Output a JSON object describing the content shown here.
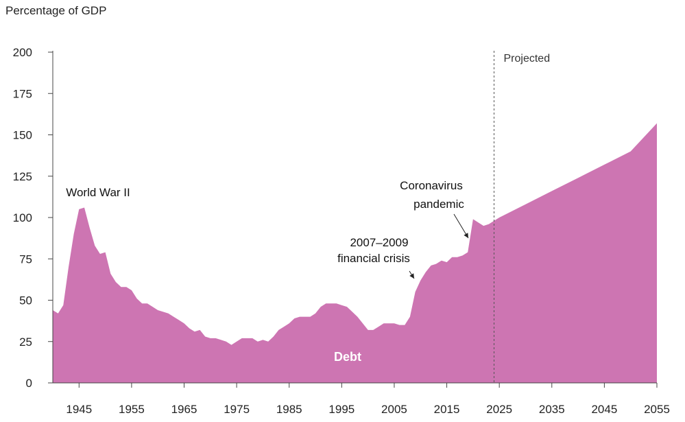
{
  "chart_data": {
    "type": "area",
    "ylabel": "Percentage of GDP",
    "ylim": [
      0,
      200
    ],
    "xlim": [
      1940,
      2055
    ],
    "yticks": [
      0,
      25,
      50,
      75,
      100,
      125,
      150,
      175,
      200
    ],
    "xticks": [
      1945,
      1955,
      1965,
      1975,
      1985,
      1995,
      2005,
      2015,
      2025,
      2035,
      2045,
      2055
    ],
    "grid": false,
    "fill_color": "#cd75b2",
    "projection_start": 2024,
    "projection_label": "Projected",
    "series": [
      {
        "name": "Debt",
        "x": [
          1940,
          1941,
          1942,
          1943,
          1944,
          1945,
          1946,
          1947,
          1948,
          1949,
          1950,
          1951,
          1952,
          1953,
          1954,
          1955,
          1956,
          1957,
          1958,
          1959,
          1960,
          1961,
          1962,
          1963,
          1964,
          1965,
          1966,
          1967,
          1968,
          1969,
          1970,
          1971,
          1972,
          1973,
          1974,
          1975,
          1976,
          1977,
          1978,
          1979,
          1980,
          1981,
          1982,
          1983,
          1984,
          1985,
          1986,
          1987,
          1988,
          1989,
          1990,
          1991,
          1992,
          1993,
          1994,
          1995,
          1996,
          1997,
          1998,
          1999,
          2000,
          2001,
          2002,
          2003,
          2004,
          2005,
          2006,
          2007,
          2008,
          2009,
          2010,
          2011,
          2012,
          2013,
          2014,
          2015,
          2016,
          2017,
          2018,
          2019,
          2020,
          2021,
          2022,
          2023,
          2024,
          2025,
          2030,
          2035,
          2040,
          2045,
          2050,
          2055
        ],
        "values": [
          44,
          42,
          47,
          70,
          90,
          105,
          106,
          94,
          83,
          78,
          79,
          66,
          61,
          58,
          58,
          56,
          51,
          48,
          48,
          46,
          44,
          43,
          42,
          40,
          38,
          36,
          33,
          31,
          32,
          28,
          27,
          27,
          26,
          25,
          23,
          25,
          27,
          27,
          27,
          25,
          26,
          25,
          28,
          32,
          34,
          36,
          39,
          40,
          40,
          40,
          42,
          46,
          48,
          48,
          48,
          47,
          46,
          43,
          40,
          36,
          32,
          32,
          34,
          36,
          36,
          36,
          35,
          35,
          40,
          55,
          62,
          67,
          71,
          72,
          74,
          73,
          76,
          76,
          77,
          79,
          99,
          97,
          95,
          96,
          98,
          100,
          108,
          116,
          124,
          132,
          140,
          157
        ]
      }
    ],
    "annotations": [
      {
        "text": "World War II",
        "x": 1945,
        "y": 106
      },
      {
        "text": "Coronavirus",
        "x": 2020,
        "y": 99
      },
      {
        "text": "pandemic",
        "x": 2020,
        "y": 99
      },
      {
        "text": "2007–2009",
        "x": 2009,
        "y": 55
      },
      {
        "text": "financial crisis",
        "x": 2009,
        "y": 55
      },
      {
        "text": "Debt",
        "x": 1998,
        "y": 16
      }
    ]
  }
}
